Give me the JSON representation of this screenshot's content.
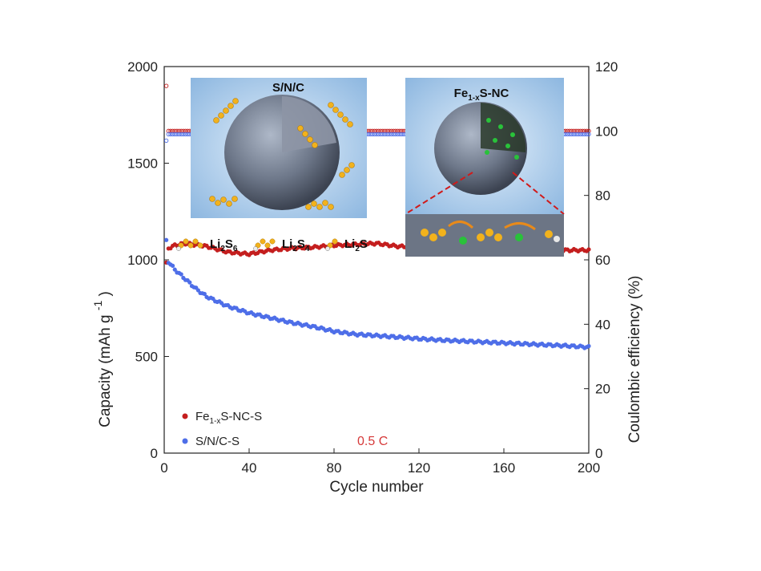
{
  "chart_data": {
    "type": "scatter",
    "x_label": "Cycle number",
    "y_label_left": "Capacity (mAh g",
    "y_label_left_exp": "-1",
    "y_label_left_close": ")",
    "y_label_right": "Coulombic efficiency (%)",
    "xlim": [
      0,
      200
    ],
    "ylim_left": [
      0,
      2000
    ],
    "ylim_right": [
      0,
      120
    ],
    "x_ticks": [
      0,
      40,
      80,
      120,
      160,
      200
    ],
    "y_ticks_left": [
      0,
      500,
      1000,
      1500,
      2000
    ],
    "y_ticks_right": [
      0,
      20,
      40,
      60,
      80,
      100,
      120
    ],
    "rate_label": "0.5 C",
    "series": [
      {
        "name_main": "Fe",
        "name_sub": "1-x",
        "name_rest": "S-NC-S",
        "color": "#c41e1e",
        "axis": "left",
        "cycles": [
          1,
          2,
          5,
          10,
          20,
          30,
          40,
          50,
          60,
          70,
          80,
          90,
          100,
          110,
          120,
          130,
          140,
          150,
          160,
          170,
          180,
          190,
          200
        ],
        "capacity": [
          980,
          1060,
          1075,
          1085,
          1070,
          1040,
          1030,
          1050,
          1060,
          1065,
          1075,
          1080,
          1085,
          1070,
          1065,
          1060,
          1060,
          1065,
          1060,
          1055,
          1050,
          1050,
          1050
        ]
      },
      {
        "name": "S/N/C-S",
        "color": "#4e6ee8",
        "axis": "left",
        "cycles": [
          1,
          2,
          5,
          10,
          15,
          20,
          30,
          40,
          50,
          60,
          70,
          80,
          90,
          100,
          110,
          120,
          130,
          140,
          150,
          160,
          170,
          180,
          190,
          200
        ],
        "capacity": [
          1100,
          990,
          950,
          900,
          850,
          810,
          760,
          725,
          700,
          675,
          655,
          630,
          615,
          608,
          600,
          592,
          585,
          580,
          575,
          570,
          565,
          560,
          555,
          548
        ]
      },
      {
        "name": "Coulombic efficiency Fe1-xS-NC-S",
        "color": "#c41e1e",
        "axis": "right",
        "marker": "open",
        "cycles": [
          1,
          2,
          5,
          20,
          40,
          60,
          80,
          100,
          120,
          140,
          160,
          180,
          200
        ],
        "efficiency": [
          114,
          100,
          100,
          100,
          100,
          100,
          100,
          100,
          100,
          100,
          100,
          100,
          100
        ]
      },
      {
        "name": "Coulombic efficiency S/N/C-S",
        "color": "#4e6ee8",
        "axis": "right",
        "marker": "open",
        "cycles": [
          1,
          2,
          5,
          20,
          40,
          60,
          80,
          100,
          120,
          140,
          160,
          180,
          200
        ],
        "efficiency": [
          97,
          99,
          99,
          99,
          99,
          99,
          99,
          99,
          99,
          99,
          99,
          99,
          99
        ]
      }
    ]
  },
  "inset_left": {
    "title": "S/N/C"
  },
  "inset_right": {
    "title_main": "Fe",
    "title_sub": "1-x",
    "title_rest": "S-NC"
  },
  "species_legend": [
    {
      "main": "Li",
      "sub1": "2",
      "mid": "S",
      "sub2": "6"
    },
    {
      "main": "Li",
      "sub1": "2",
      "mid": "S",
      "sub2": "4"
    },
    {
      "main": "Li",
      "sub1": "2",
      "mid": "S",
      "sub2": ""
    }
  ],
  "colors": {
    "red_series": "#c41e1e",
    "blue_series": "#4e6ee8",
    "rate_label": "#d63a3a",
    "inset_background": "#9fc4e6"
  }
}
